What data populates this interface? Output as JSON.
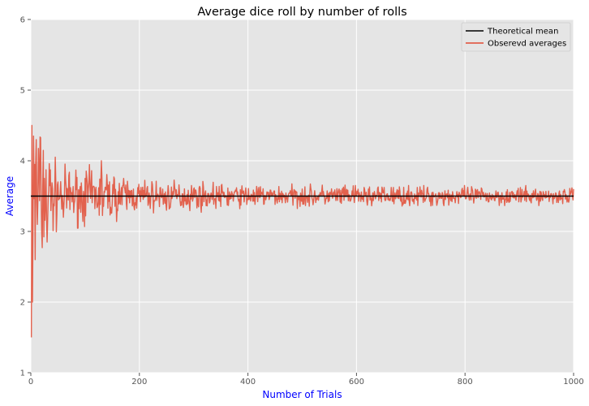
{
  "chart_data": {
    "type": "line",
    "title": "Average dice roll by number of rolls",
    "xlabel": "Number of Trials",
    "ylabel": "Average",
    "xlim": [
      0,
      1000
    ],
    "ylim": [
      1,
      6
    ],
    "xticks": [
      0,
      200,
      400,
      600,
      800,
      1000
    ],
    "yticks": [
      1,
      2,
      3,
      4,
      5,
      6
    ],
    "grid": true,
    "legend_position": "top-right",
    "series": [
      {
        "name": "Theoretical mean",
        "color": "#000000",
        "style": "horizontal-line",
        "y": 3.5
      },
      {
        "name": "Obserevd averages",
        "color": "#e24a33",
        "x_start": 1,
        "x_end": 1000,
        "y_range_approx": [
          [
            1,
            1.5,
            4.5
          ],
          [
            50,
            3.0,
            4.0
          ],
          [
            130,
            3.1,
            4.0
          ],
          [
            200,
            3.2,
            3.8
          ],
          [
            400,
            3.3,
            3.7
          ],
          [
            600,
            3.3,
            3.65
          ],
          [
            1000,
            3.35,
            3.65
          ]
        ],
        "x_keypoints": [
          1,
          2,
          3,
          5,
          8,
          10,
          12,
          15,
          20,
          25,
          30,
          40,
          50,
          60,
          75,
          100,
          130,
          150,
          200,
          250,
          300,
          400,
          500,
          600,
          700,
          800,
          900,
          1000
        ],
        "y_keypoints": [
          1.5,
          4.5,
          2.0,
          4.35,
          2.6,
          4.3,
          3.1,
          3.9,
          3.0,
          3.75,
          2.85,
          3.6,
          3.7,
          3.2,
          3.55,
          3.75,
          4.0,
          3.4,
          3.5,
          3.3,
          3.6,
          3.45,
          3.6,
          3.5,
          3.55,
          3.5,
          3.5,
          3.6
        ]
      }
    ]
  }
}
